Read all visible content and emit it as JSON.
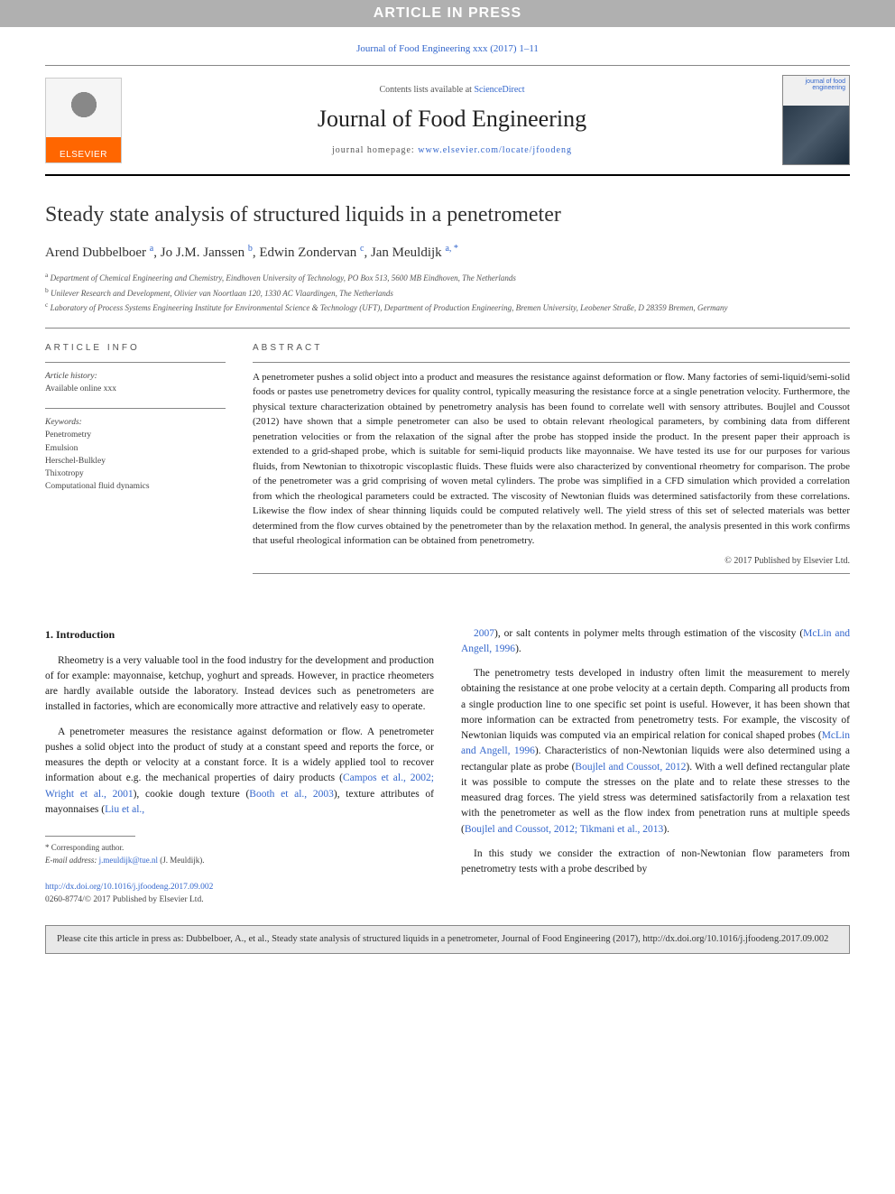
{
  "banner": "ARTICLE IN PRESS",
  "journal_ref": "Journal of Food Engineering xxx (2017) 1–11",
  "header": {
    "elsevier": "ELSEVIER",
    "contents_prefix": "Contents lists available at ",
    "contents_link": "ScienceDirect",
    "journal_name": "Journal of Food Engineering",
    "homepage_prefix": "journal homepage: ",
    "homepage_url": "www.elsevier.com/locate/jfoodeng",
    "cover_title": "journal of food engineering"
  },
  "title": "Steady state analysis of structured liquids in a penetrometer",
  "authors_html": "Arend Dubbelboer <sup>a</sup>, Jo J.M. Janssen <sup>b</sup>, Edwin Zondervan <sup>c</sup>, Jan Meuldijk <sup>a, *</sup>",
  "affiliations": [
    {
      "sup": "a",
      "text": "Department of Chemical Engineering and Chemistry, Eindhoven University of Technology, PO Box 513, 5600 MB Eindhoven, The Netherlands"
    },
    {
      "sup": "b",
      "text": "Unilever Research and Development, Olivier van Noortlaan 120, 1330 AC Vlaardingen, The Netherlands"
    },
    {
      "sup": "c",
      "text": "Laboratory of Process Systems Engineering Institute for Environmental Science & Technology (UFT), Department of Production Engineering, Bremen University, Leobener Straße, D 28359 Bremen, Germany"
    }
  ],
  "article_info": {
    "label": "ARTICLE INFO",
    "history_label": "Article history:",
    "history_text": "Available online xxx",
    "keywords_label": "Keywords:",
    "keywords": [
      "Penetrometry",
      "Emulsion",
      "Herschel-Bulkley",
      "Thixotropy",
      "Computational fluid dynamics"
    ]
  },
  "abstract": {
    "label": "ABSTRACT",
    "text": "A penetrometer pushes a solid object into a product and measures the resistance against deformation or flow. Many factories of semi-liquid/semi-solid foods or pastes use penetrometry devices for quality control, typically measuring the resistance force at a single penetration velocity. Furthermore, the physical texture characterization obtained by penetrometry analysis has been found to correlate well with sensory attributes. Boujlel and Coussot (2012) have shown that a simple penetrometer can also be used to obtain relevant rheological parameters, by combining data from different penetration velocities or from the relaxation of the signal after the probe has stopped inside the product. In the present paper their approach is extended to a grid-shaped probe, which is suitable for semi-liquid products like mayonnaise. We have tested its use for our purposes for various fluids, from Newtonian to thixotropic viscoplastic fluids. These fluids were also characterized by conventional rheometry for comparison. The probe of the penetrometer was a grid comprising of woven metal cylinders. The probe was simplified in a CFD simulation which provided a correlation from which the rheological parameters could be extracted. The viscosity of Newtonian fluids was determined satisfactorily from these correlations. Likewise the flow index of shear thinning liquids could be computed relatively well. The yield stress of this set of selected materials was better determined from the flow curves obtained by the penetrometer than by the relaxation method. In general, the analysis presented in this work confirms that useful rheological information can be obtained from penetrometry.",
    "copyright": "© 2017 Published by Elsevier Ltd."
  },
  "intro": {
    "heading": "1. Introduction",
    "left": [
      "Rheometry is a very valuable tool in the food industry for the development and production of for example: mayonnaise, ketchup, yoghurt and spreads. However, in practice rheometers are hardly available outside the laboratory. Instead devices such as penetrometers are installed in factories, which are economically more attractive and relatively easy to operate.",
      "A penetrometer measures the resistance against deformation or flow. A penetrometer pushes a solid object into the product of study at a constant speed and reports the force, or measures the depth or velocity at a constant force. It is a widely applied tool to recover information about e.g. the mechanical properties of dairy products (<a href='#'>Campos et al., 2002; Wright et al., 2001</a>), cookie dough texture (<a href='#'>Booth et al., 2003</a>), texture attributes of mayonnaises (<a href='#'>Liu et al.,</a>"
    ],
    "right": [
      "<a href='#'>2007</a>), or salt contents in polymer melts through estimation of the viscosity (<a href='#'>McLin and Angell, 1996</a>).",
      "The penetrometry tests developed in industry often limit the measurement to merely obtaining the resistance at one probe velocity at a certain depth. Comparing all products from a single production line to one specific set point is useful. However, it has been shown that more information can be extracted from penetrometry tests. For example, the viscosity of Newtonian liquids was computed via an empirical relation for conical shaped probes (<a href='#'>McLin and Angell, 1996</a>). Characteristics of non-Newtonian liquids were also determined using a rectangular plate as probe (<a href='#'>Boujlel and Coussot, 2012</a>). With a well defined rectangular plate it was possible to compute the stresses on the plate and to relate these stresses to the measured drag forces. The yield stress was determined satisfactorily from a relaxation test with the penetrometer as well as the flow index from penetration runs at multiple speeds (<a href='#'>Boujlel and Coussot, 2012; Tikmani et al., 2013</a>).",
      "In this study we consider the extraction of non-Newtonian flow parameters from penetrometry tests with a probe described by"
    ]
  },
  "footnote": {
    "corresponding": "* Corresponding author.",
    "email_label": "E-mail address: ",
    "email": "j.meuldijk@tue.nl",
    "email_suffix": " (J. Meuldijk)."
  },
  "doi": {
    "url": "http://dx.doi.org/10.1016/j.jfoodeng.2017.09.002",
    "issn": "0260-8774/© 2017 Published by Elsevier Ltd."
  },
  "cite_box": "Please cite this article in press as: Dubbelboer, A., et al., Steady state analysis of structured liquids in a penetrometer, Journal of Food Engineering (2017), http://dx.doi.org/10.1016/j.jfoodeng.2017.09.002",
  "colors": {
    "link": "#3366cc",
    "banner_bg": "#b0b0b0",
    "elsevier_orange": "#ff6600",
    "citebox_bg": "#e8e8e8"
  },
  "typography": {
    "body_font": "Georgia, Times New Roman, serif",
    "title_size_pt": 24,
    "journal_name_size_pt": 26,
    "abstract_size_pt": 11,
    "body_size_pt": 11.5,
    "affil_size_pt": 9
  }
}
